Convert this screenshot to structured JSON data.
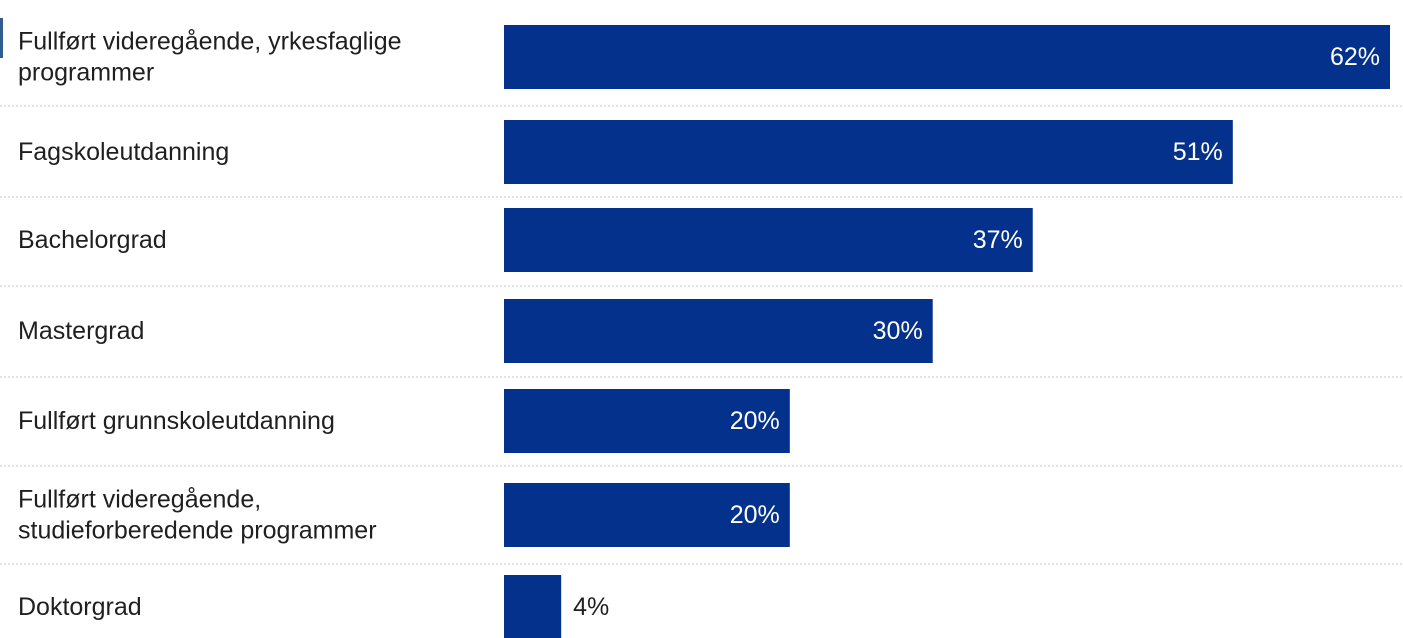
{
  "chart_data": {
    "type": "bar",
    "orientation": "horizontal",
    "categories": [
      [
        "Fullført videregående, yrkesfaglige",
        "programmer"
      ],
      [
        "Fagskoleutdanning"
      ],
      [
        "Bachelorgrad"
      ],
      [
        "Mastergrad"
      ],
      [
        "Fullført grunnskoleutdanning"
      ],
      [
        "Fullført videregående,",
        "studieforberedende programmer"
      ],
      [
        "Doktorgrad"
      ]
    ],
    "values": [
      62,
      51,
      37,
      30,
      20,
      20,
      4
    ],
    "value_labels": [
      "62%",
      "51%",
      "37%",
      "30%",
      "20%",
      "20%",
      "4%"
    ],
    "xlim": [
      0,
      62
    ],
    "grid": false,
    "legend": "none",
    "bar_color": "#04318b",
    "label_color_inside": "#ffffff",
    "label_color_outside": "#1f1f1f"
  }
}
